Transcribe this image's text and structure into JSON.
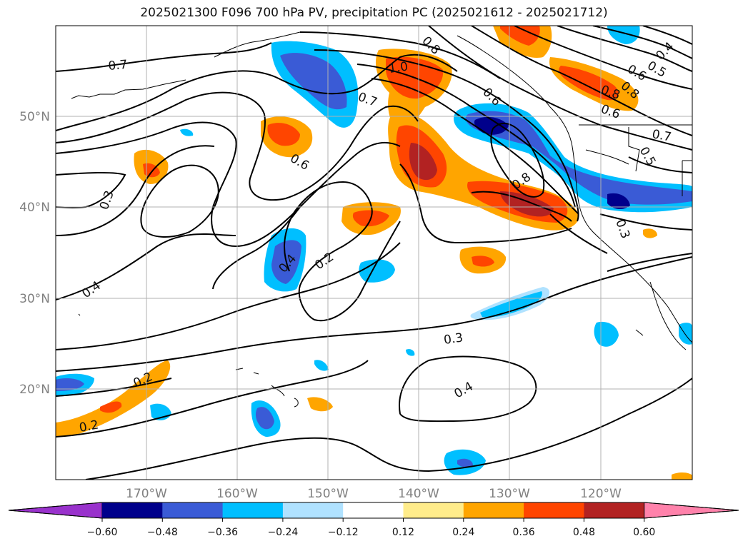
{
  "title": "2025021300 F096 700 hPa PV, precipitation PC (2025021612 - 2025021712)",
  "map": {
    "lat_ticks": [
      "50°N",
      "40°N",
      "30°N",
      "20°N"
    ],
    "lon_ticks": [
      "170°W",
      "160°W",
      "150°W",
      "140°W",
      "130°W",
      "120°W"
    ],
    "grid": true
  },
  "contour_labels": [
    "0.7",
    "1.0",
    "0.8",
    "0.8",
    "0.7",
    "0.6",
    "0.6",
    "0.4",
    "0.5",
    "0.8",
    "0.6",
    "0.7",
    "0.5",
    "0.3",
    "0.6",
    "0.8",
    "0.3",
    "0.4",
    "0.2",
    "0.4",
    "0.3",
    "0.4",
    "0.2",
    "0.2"
  ],
  "colorbar": {
    "ticks": [
      "−0.60",
      "−0.48",
      "−0.36",
      "−0.24",
      "−0.12",
      "0.12",
      "0.24",
      "0.36",
      "0.48",
      "0.60"
    ],
    "colors": [
      "#9932cc",
      "#00008b",
      "#3a5bd6",
      "#00bfff",
      "#b0e2ff",
      "#ffffff",
      "#ffec8b",
      "#ffa500",
      "#ff4500",
      "#b22222",
      "#ff82ab"
    ]
  }
}
